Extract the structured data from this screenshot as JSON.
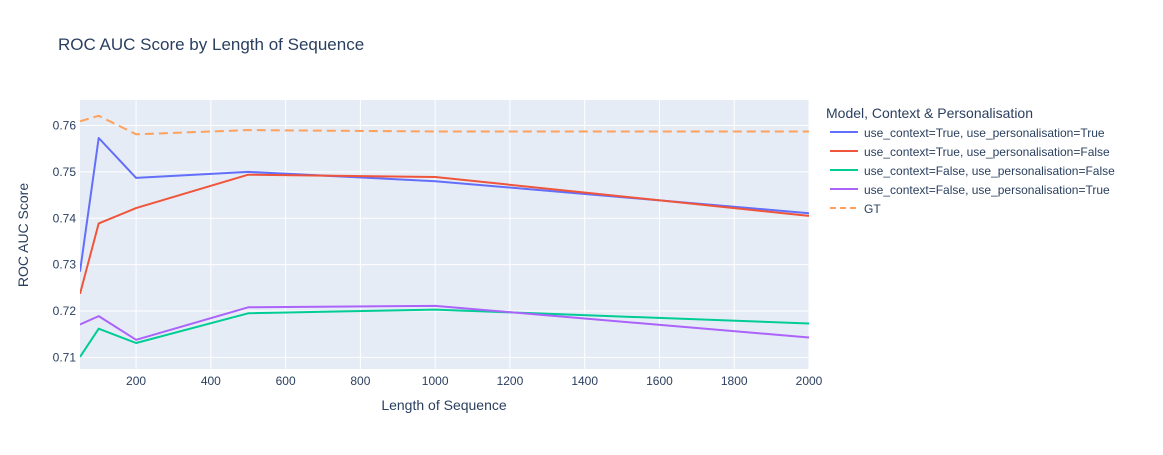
{
  "chart_data": {
    "type": "line",
    "title": "ROC AUC Score by Length of Sequence",
    "xlabel": "Length of Sequence",
    "ylabel": "ROC AUC Score",
    "xlim": [
      50,
      2000
    ],
    "ylim": [
      0.7075,
      0.7655
    ],
    "xticks": [
      200,
      400,
      600,
      800,
      1000,
      1200,
      1400,
      1600,
      1800,
      2000
    ],
    "xtick_labels": [
      "200",
      "400",
      "600",
      "800",
      "1000",
      "1200",
      "1400",
      "1600",
      "1800",
      "2000"
    ],
    "yticks": [
      0.71,
      0.72,
      0.73,
      0.74,
      0.75,
      0.76
    ],
    "ytick_labels": [
      "0.71",
      "0.72",
      "0.73",
      "0.74",
      "0.75",
      "0.76"
    ],
    "grid": true,
    "legend": {
      "title": "Model, Context & Personalisation",
      "placement": "right"
    },
    "x": [
      50,
      100,
      200,
      500,
      1000,
      2000
    ],
    "series": [
      {
        "name": "use_context=True, use_personalisation=True",
        "color": "#636efa",
        "dash": "solid",
        "values": [
          0.7285,
          0.7573,
          0.7487,
          0.75,
          0.748,
          0.7411
        ]
      },
      {
        "name": "use_context=True, use_personalisation=False",
        "color": "#EF553B",
        "dash": "solid",
        "values": [
          0.7237,
          0.7389,
          0.7422,
          0.7494,
          0.7489,
          0.7405
        ]
      },
      {
        "name": "use_context=False, use_personalisation=False",
        "color": "#00cc96",
        "dash": "solid",
        "values": [
          0.7101,
          0.7162,
          0.7131,
          0.7195,
          0.7203,
          0.7173
        ]
      },
      {
        "name": "use_context=False, use_personalisation=True",
        "color": "#ab63fa",
        "dash": "solid",
        "values": [
          0.7171,
          0.7189,
          0.7138,
          0.7208,
          0.7211,
          0.7143
        ]
      },
      {
        "name": "GT",
        "color": "#FFA15A",
        "dash": "dash",
        "values": [
          0.7609,
          0.7621,
          0.7581,
          0.759,
          0.7587,
          0.7587
        ]
      }
    ]
  }
}
